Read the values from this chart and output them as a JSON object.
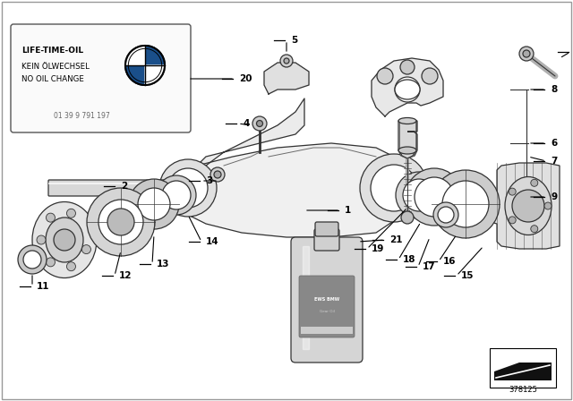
{
  "background_color": "#ffffff",
  "image_number": "378125",
  "label_box_text": [
    "LIFE-TIME-OIL",
    "KEIN ÖLWECHSEL",
    "NO OIL CHANGE",
    "01 39 9 791 197"
  ],
  "part_num": "20",
  "fig_width": 6.4,
  "fig_height": 4.48,
  "dpi": 100
}
